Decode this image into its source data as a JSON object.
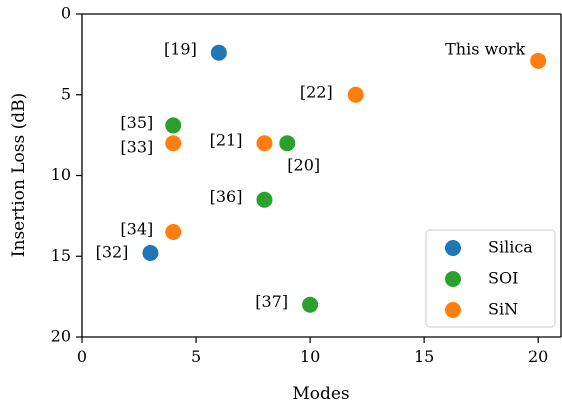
{
  "chart_data": {
    "type": "scatter",
    "title": "",
    "xlabel": "Modes",
    "ylabel": "Insertion Loss (dB)",
    "xlim": [
      0,
      21
    ],
    "ylim": [
      0,
      20
    ],
    "y_inverted": true,
    "x_ticks": [
      0,
      5,
      10,
      15,
      20
    ],
    "y_ticks": [
      0,
      5,
      10,
      15,
      20
    ],
    "grid": false,
    "legend_position": "bottom-right",
    "series": [
      {
        "name": "Silica",
        "color": "#1f77b4",
        "points": [
          {
            "x": 6,
            "y": 2.4,
            "label": "[19]"
          },
          {
            "x": 3,
            "y": 14.8,
            "label": "[32]"
          }
        ]
      },
      {
        "name": "SOI",
        "color": "#2ca02c",
        "points": [
          {
            "x": 4,
            "y": 6.9,
            "label": "[35]"
          },
          {
            "x": 9,
            "y": 8.0,
            "label": "[20]"
          },
          {
            "x": 8,
            "y": 11.5,
            "label": "[36]"
          },
          {
            "x": 10,
            "y": 18.0,
            "label": "[37]"
          }
        ]
      },
      {
        "name": "SiN",
        "color": "#ff7f0e",
        "points": [
          {
            "x": 20,
            "y": 2.9,
            "label": "This work"
          },
          {
            "x": 12,
            "y": 5.0,
            "label": "[22]"
          },
          {
            "x": 4,
            "y": 8.0,
            "label": "[33]"
          },
          {
            "x": 8,
            "y": 8.0,
            "label": "[21]"
          },
          {
            "x": 4,
            "y": 13.5,
            "label": "[34]"
          }
        ]
      }
    ]
  }
}
